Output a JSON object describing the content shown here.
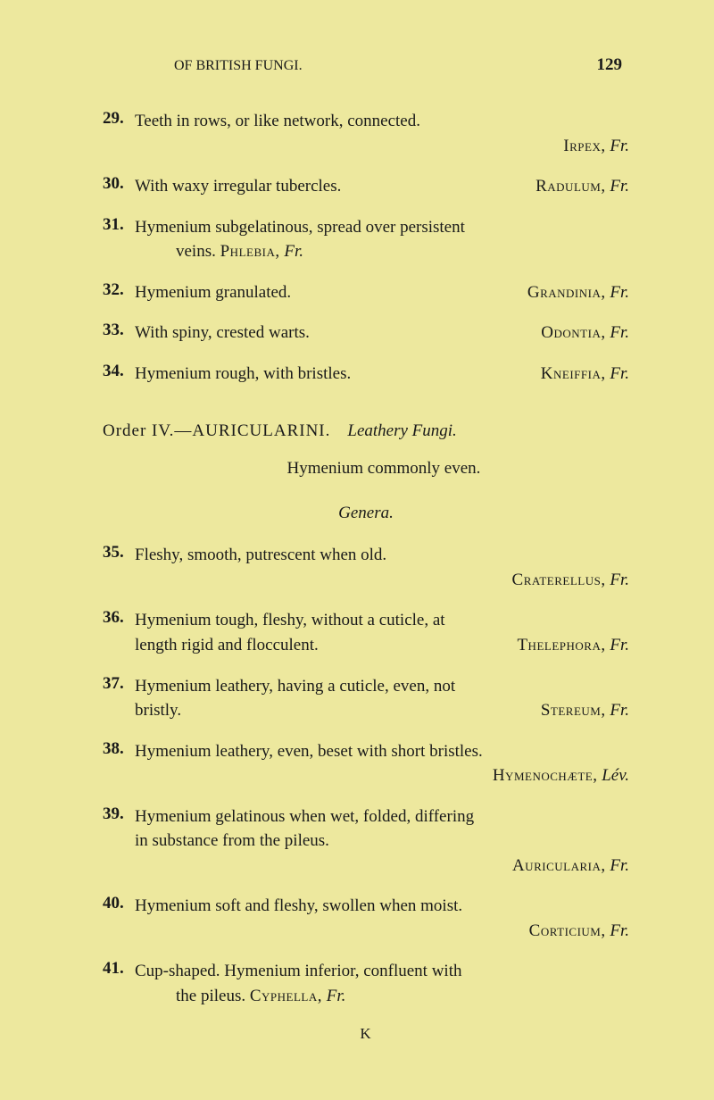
{
  "header": {
    "running_title": "OF BRITISH FUNGI.",
    "page_number": "129"
  },
  "entries_top": [
    {
      "num": "29.",
      "text": "Teeth in rows, or like network, connected.",
      "term_genus": "Irpex,",
      "term_auth": "Fr."
    },
    {
      "num": "30.",
      "text": "With waxy irregular tubercles.",
      "term_genus": "Radulum,",
      "term_auth": "Fr."
    },
    {
      "num": "31.",
      "text": "Hymenium subgelatinous, spread over persistent",
      "sub_text": "veins.",
      "term_genus": "Phlebia,",
      "term_auth": "Fr."
    },
    {
      "num": "32.",
      "text": "Hymenium granulated.",
      "term_genus": "Grandinia,",
      "term_auth": "Fr."
    },
    {
      "num": "33.",
      "text": "With spiny, crested warts.",
      "term_genus": "Odontia,",
      "term_auth": "Fr."
    },
    {
      "num": "34.",
      "text": "Hymenium rough, with bristles.",
      "term_genus": "Kneiffia,",
      "term_auth": "Fr."
    }
  ],
  "order": {
    "label": "Order IV.—AURICULARINI.",
    "desc": "Leathery Fungi.",
    "hymenium": "Hymenium commonly even.",
    "genera": "Genera."
  },
  "entries_bottom": [
    {
      "num": "35.",
      "text": "Fleshy, smooth, putrescent when old.",
      "term_genus": "Craterellus,",
      "term_auth": "Fr."
    },
    {
      "num": "36.",
      "text": "Hymenium tough, fleshy, without a cuticle, at",
      "sub_text": "length rigid and flocculent.",
      "term_genus": "Thelephora,",
      "term_auth": "Fr."
    },
    {
      "num": "37.",
      "text": "Hymenium leathery, having a cuticle, even, not",
      "sub_text": "bristly.",
      "term_genus": "Stereum,",
      "term_auth": "Fr."
    },
    {
      "num": "38.",
      "text": "Hymenium leathery, even, beset with short bristles.",
      "term_genus": "Hymenochæte,",
      "term_auth": "Lév."
    },
    {
      "num": "39.",
      "text": "Hymenium gelatinous when wet, folded, differing",
      "sub_text": "in substance from the pileus.",
      "term_genus": "Auricularia,",
      "term_auth": "Fr."
    },
    {
      "num": "40.",
      "text": "Hymenium soft and fleshy, swollen when moist.",
      "term_genus": "Corticium,",
      "term_auth": "Fr."
    },
    {
      "num": "41.",
      "text": "Cup-shaped. Hymenium inferior, confluent with",
      "sub_text": "the pileus.",
      "term_genus": "Cyphella,",
      "term_auth": "Fr."
    }
  ],
  "signature": "K"
}
